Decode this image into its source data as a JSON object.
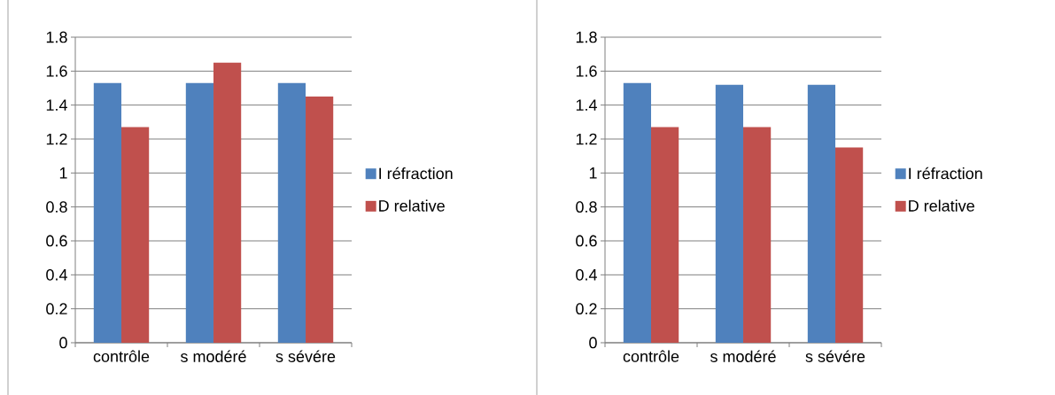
{
  "chart_data": [
    {
      "type": "bar",
      "categories": [
        "contrôle",
        "s modéré",
        "s sévére"
      ],
      "series": [
        {
          "name": "I réfraction",
          "color": "#4f81bd",
          "values": [
            1.53,
            1.53,
            1.53
          ]
        },
        {
          "name": "D relative",
          "color": "#c0504d",
          "values": [
            1.27,
            1.65,
            1.45
          ]
        }
      ],
      "ylim": [
        0,
        1.8
      ],
      "yticks": [
        0,
        0.2,
        0.4,
        0.6,
        0.8,
        1,
        1.2,
        1.4,
        1.6,
        1.8
      ],
      "grid": "y",
      "legend": "right"
    },
    {
      "type": "bar",
      "categories": [
        "contrôle",
        "s modéré",
        "s sévére"
      ],
      "series": [
        {
          "name": "I réfraction",
          "color": "#4f81bd",
          "values": [
            1.53,
            1.52,
            1.52
          ]
        },
        {
          "name": "D relative",
          "color": "#c0504d",
          "values": [
            1.27,
            1.27,
            1.15
          ]
        }
      ],
      "ylim": [
        0,
        1.8
      ],
      "yticks": [
        0,
        0.2,
        0.4,
        0.6,
        0.8,
        1,
        1.2,
        1.4,
        1.6,
        1.8
      ],
      "grid": "y",
      "legend": "right"
    }
  ]
}
